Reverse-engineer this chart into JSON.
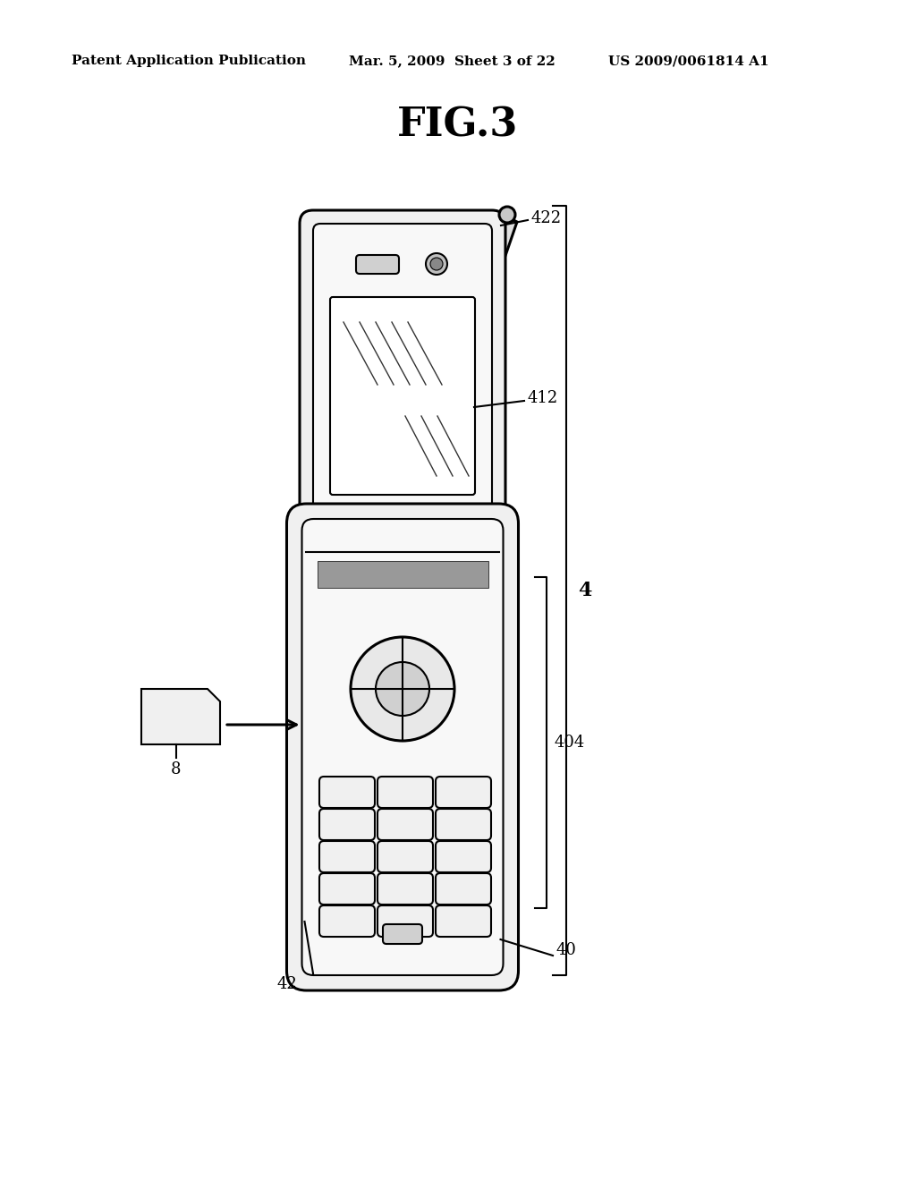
{
  "title": "FIG.3",
  "header_left": "Patent Application Publication",
  "header_mid": "Mar. 5, 2009  Sheet 3 of 22",
  "header_right": "US 2009/0061814 A1",
  "bg_color": "#ffffff",
  "line_color": "#000000",
  "label_422": "422",
  "label_412": "412",
  "label_404": "404",
  "label_4": "4",
  "label_40": "40",
  "label_42": "42",
  "label_8": "8"
}
